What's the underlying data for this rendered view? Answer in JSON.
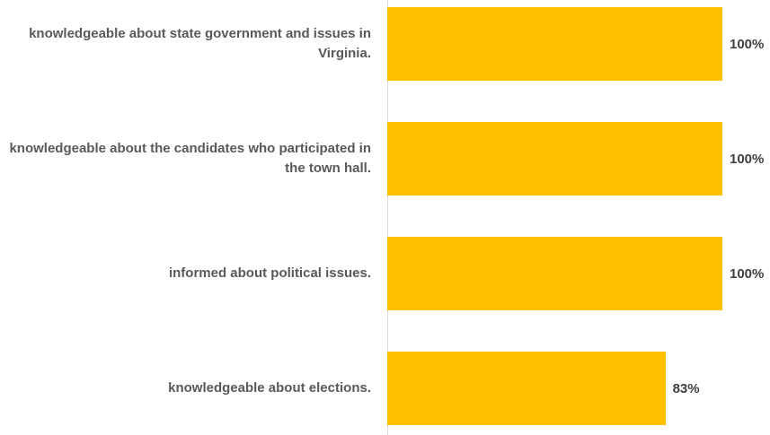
{
  "chart_data": {
    "type": "hbar",
    "categories": [
      "knowledgeable about state government and issues in Virginia.",
      "knowledgeable about the candidates who participated in the town hall.",
      "informed about political issues.",
      "knowledgeable about elections."
    ],
    "values": [
      100,
      100,
      100,
      83
    ],
    "value_labels": [
      "100%",
      "100%",
      "100%",
      "83%"
    ],
    "color": "#ffc000",
    "xlim": [
      0,
      100
    ]
  }
}
